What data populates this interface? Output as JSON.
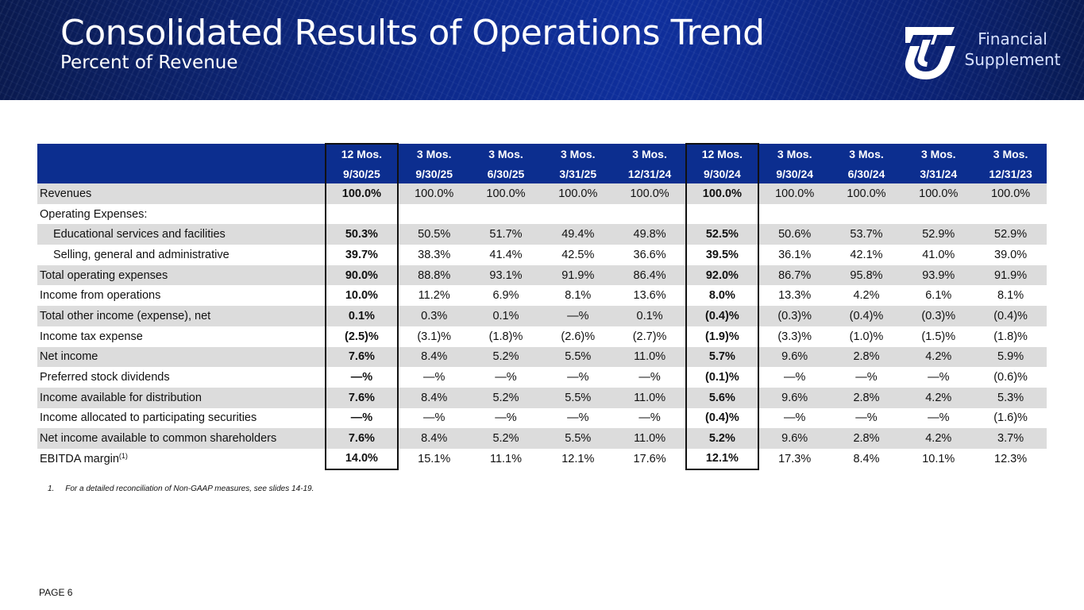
{
  "header": {
    "title": "Consolidated Results of Operations Trend",
    "subtitle": "Percent of Revenue",
    "badge_line1": "Financial",
    "badge_line2": "Supplement",
    "logo_icon": "uti-logo-icon",
    "colors": {
      "header_bg": "#0d2a8c",
      "table_header": "#0c2e8f",
      "row_shade": "#dcdcdc"
    }
  },
  "table": {
    "columns": [
      {
        "top": "12 Mos.",
        "bottom": "9/30/25"
      },
      {
        "top": "3 Mos.",
        "bottom": "9/30/25"
      },
      {
        "top": "3 Mos.",
        "bottom": "6/30/25"
      },
      {
        "top": "3 Mos.",
        "bottom": "3/31/25"
      },
      {
        "top": "3 Mos.",
        "bottom": "12/31/24"
      },
      {
        "top": "12 Mos.",
        "bottom": "9/30/24"
      },
      {
        "top": "3 Mos.",
        "bottom": "9/30/24"
      },
      {
        "top": "3 Mos.",
        "bottom": "6/30/24"
      },
      {
        "top": "3 Mos.",
        "bottom": "3/31/24"
      },
      {
        "top": "3 Mos.",
        "bottom": "12/31/23"
      }
    ],
    "rows": [
      {
        "label": "Revenues",
        "values": [
          "100.0%",
          "100.0%",
          "100.0%",
          "100.0%",
          "100.0%",
          "100.0%",
          "100.0%",
          "100.0%",
          "100.0%",
          "100.0%"
        ]
      },
      {
        "label": "Operating Expenses:",
        "values": [
          "",
          "",
          "",
          "",
          "",
          "",
          "",
          "",
          "",
          ""
        ]
      },
      {
        "label": "Educational services and facilities",
        "values": [
          "50.3%",
          "50.5%",
          "51.7%",
          "49.4%",
          "49.8%",
          "52.5%",
          "50.6%",
          "53.7%",
          "52.9%",
          "52.9%"
        ]
      },
      {
        "label": "Selling, general and administrative",
        "values": [
          "39.7%",
          "38.3%",
          "41.4%",
          "42.5%",
          "36.6%",
          "39.5%",
          "36.1%",
          "42.1%",
          "41.0%",
          "39.0%"
        ]
      },
      {
        "label": "Total operating expenses",
        "values": [
          "90.0%",
          "88.8%",
          "93.1%",
          "91.9%",
          "86.4%",
          "92.0%",
          "86.7%",
          "95.8%",
          "93.9%",
          "91.9%"
        ]
      },
      {
        "label": "Income from operations",
        "values": [
          "10.0%",
          "11.2%",
          "6.9%",
          "8.1%",
          "13.6%",
          "8.0%",
          "13.3%",
          "4.2%",
          "6.1%",
          "8.1%"
        ]
      },
      {
        "label": "Total other income (expense), net",
        "values": [
          "0.1%",
          "0.3%",
          "0.1%",
          "—%",
          "0.1%",
          "(0.4)%",
          "(0.3)%",
          "(0.4)%",
          "(0.3)%",
          "(0.4)%"
        ]
      },
      {
        "label": "Income tax expense",
        "values": [
          "(2.5)%",
          "(3.1)%",
          "(1.8)%",
          "(2.6)%",
          "(2.7)%",
          "(1.9)%",
          "(3.3)%",
          "(1.0)%",
          "(1.5)%",
          "(1.8)%"
        ]
      },
      {
        "label": "Net income",
        "values": [
          "7.6%",
          "8.4%",
          "5.2%",
          "5.5%",
          "11.0%",
          "5.7%",
          "9.6%",
          "2.8%",
          "4.2%",
          "5.9%"
        ]
      },
      {
        "label": "Preferred stock dividends",
        "values": [
          "—%",
          "—%",
          "—%",
          "—%",
          "—%",
          "(0.1)%",
          "—%",
          "—%",
          "—%",
          "(0.6)%"
        ]
      },
      {
        "label": "Income available for distribution",
        "values": [
          "7.6%",
          "8.4%",
          "5.2%",
          "5.5%",
          "11.0%",
          "5.6%",
          "9.6%",
          "2.8%",
          "4.2%",
          "5.3%"
        ]
      },
      {
        "label": "Income allocated to participating securities",
        "values": [
          "—%",
          "—%",
          "—%",
          "—%",
          "—%",
          "(0.4)%",
          "—%",
          "—%",
          "—%",
          "(1.6)%"
        ]
      },
      {
        "label": "Net income available to common shareholders",
        "values": [
          "7.6%",
          "8.4%",
          "5.2%",
          "5.5%",
          "11.0%",
          "5.2%",
          "9.6%",
          "2.8%",
          "4.2%",
          "3.7%"
        ]
      },
      {
        "label": "EBITDA margin",
        "label_sup": "(1)",
        "values": [
          "14.0%",
          "15.1%",
          "11.1%",
          "12.1%",
          "17.6%",
          "12.1%",
          "17.3%",
          "8.4%",
          "10.1%",
          "12.3%"
        ]
      }
    ]
  },
  "footnote": {
    "number": "1.",
    "text": "For a detailed reconciliation of Non-GAAP measures, see slides 14-19."
  },
  "page_label": "PAGE 6"
}
